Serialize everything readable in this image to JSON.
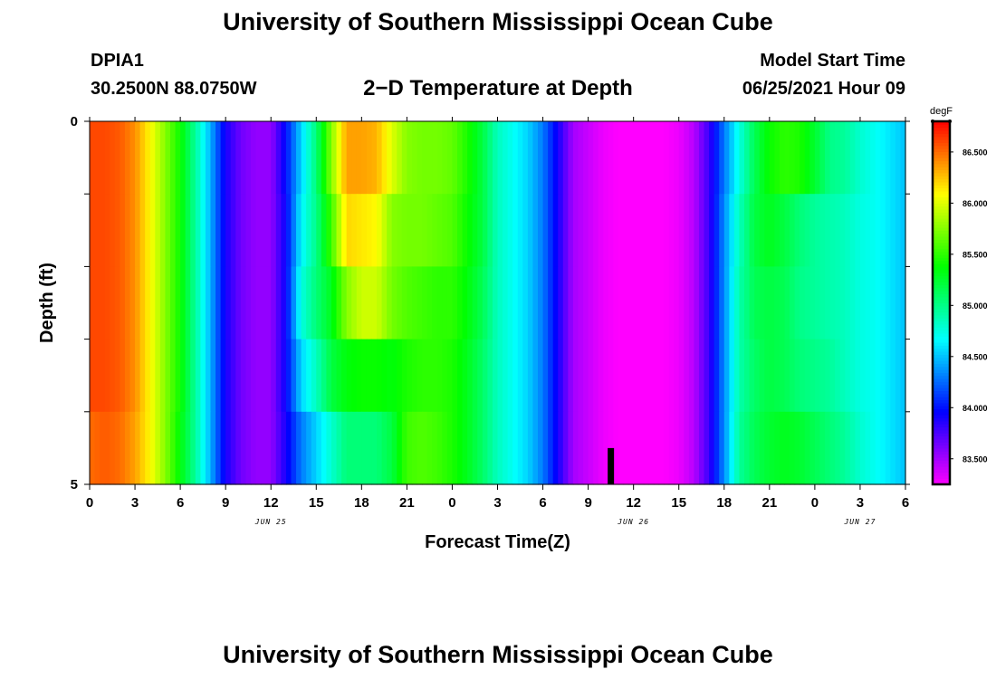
{
  "header": {
    "title": "University of Southern Mississippi Ocean Cube",
    "station": "DPIA1",
    "coords": "30.2500N  88.0750W",
    "subtitle": "2−D Temperature at Depth",
    "model_start_label": "Model Start Time",
    "model_start_value": "06/25/2021 Hour 09"
  },
  "footer": {
    "title": "University of Southern Mississippi Ocean Cube"
  },
  "chart_data": {
    "type": "heatmap",
    "title": "2-D Temperature at Depth",
    "xlabel": "Forecast Time(Z)",
    "ylabel": "Depth (ft)",
    "xlim": [
      0,
      54
    ],
    "ylim": [
      0,
      5
    ],
    "x_ticks": [
      {
        "at": 0,
        "label": "0"
      },
      {
        "at": 3,
        "label": "3"
      },
      {
        "at": 6,
        "label": "6"
      },
      {
        "at": 9,
        "label": "9"
      },
      {
        "at": 12,
        "label": "12"
      },
      {
        "at": 15,
        "label": "15"
      },
      {
        "at": 18,
        "label": "18"
      },
      {
        "at": 21,
        "label": "21"
      },
      {
        "at": 24,
        "label": "0"
      },
      {
        "at": 27,
        "label": "3"
      },
      {
        "at": 30,
        "label": "6"
      },
      {
        "at": 33,
        "label": "9"
      },
      {
        "at": 36,
        "label": "12"
      },
      {
        "at": 39,
        "label": "15"
      },
      {
        "at": 42,
        "label": "18"
      },
      {
        "at": 45,
        "label": "21"
      },
      {
        "at": 48,
        "label": "0"
      },
      {
        "at": 51,
        "label": "3"
      },
      {
        "at": 54,
        "label": "6"
      }
    ],
    "date_labels": [
      {
        "at": 12,
        "label": "JUN 25"
      },
      {
        "at": 36,
        "label": "JUN 26"
      },
      {
        "at": 51,
        "label": "JUN 27"
      }
    ],
    "y_ticks": [
      {
        "at": 0,
        "label": "0"
      },
      {
        "at": 1,
        "label": ""
      },
      {
        "at": 2,
        "label": ""
      },
      {
        "at": 3,
        "label": ""
      },
      {
        "at": 4,
        "label": ""
      },
      {
        "at": 5,
        "label": "5"
      }
    ],
    "depths": [
      0.5,
      1.5,
      2.5,
      3.5,
      4.5
    ],
    "time_nodes": [
      0,
      1,
      2,
      3,
      4,
      5,
      6,
      7,
      8,
      9,
      10,
      11,
      12,
      13,
      14,
      15,
      16,
      17,
      18,
      19,
      20,
      21,
      22,
      23,
      24,
      25,
      26,
      27,
      28,
      29,
      30,
      31,
      32,
      33,
      34,
      35,
      36,
      37,
      38,
      39,
      40,
      41,
      42,
      43,
      44,
      45,
      46,
      47,
      48,
      49,
      50,
      51,
      52,
      53,
      54
    ],
    "values": [
      [
        86.6,
        86.6,
        86.55,
        86.4,
        86.1,
        85.75,
        85.4,
        84.95,
        84.45,
        83.9,
        83.65,
        83.55,
        83.55,
        84.0,
        84.55,
        85.05,
        85.75,
        86.35,
        86.35,
        86.3,
        86.0,
        85.75,
        85.7,
        85.7,
        85.65,
        85.45,
        85.2,
        84.85,
        84.7,
        84.55,
        84.3,
        83.9,
        83.5,
        83.4,
        83.3,
        83.25,
        83.25,
        83.25,
        83.25,
        83.3,
        83.45,
        83.8,
        84.3,
        84.75,
        85.15,
        85.4,
        85.5,
        85.45,
        85.25,
        85.0,
        84.95,
        84.8,
        84.7,
        84.6,
        84.5
      ],
      [
        86.6,
        86.6,
        86.55,
        86.4,
        86.1,
        85.75,
        85.4,
        84.95,
        84.45,
        83.9,
        83.65,
        83.55,
        83.55,
        83.95,
        84.65,
        85.0,
        85.55,
        86.2,
        86.15,
        86.1,
        85.75,
        85.7,
        85.7,
        85.65,
        85.6,
        85.4,
        85.2,
        84.85,
        84.7,
        84.55,
        84.3,
        83.9,
        83.5,
        83.4,
        83.3,
        83.25,
        83.25,
        83.25,
        83.25,
        83.3,
        83.45,
        83.8,
        84.35,
        84.85,
        85.2,
        85.3,
        85.2,
        85.05,
        84.95,
        84.9,
        84.85,
        84.75,
        84.7,
        84.6,
        84.5
      ],
      [
        86.6,
        86.6,
        86.55,
        86.4,
        86.1,
        85.75,
        85.4,
        84.95,
        84.45,
        83.9,
        83.65,
        83.55,
        83.55,
        83.95,
        84.75,
        85.05,
        85.3,
        85.75,
        85.95,
        85.95,
        85.7,
        85.6,
        85.55,
        85.5,
        85.5,
        85.35,
        85.15,
        84.85,
        84.7,
        84.55,
        84.3,
        83.9,
        83.5,
        83.4,
        83.3,
        83.25,
        83.25,
        83.25,
        83.25,
        83.3,
        83.45,
        83.8,
        84.35,
        84.9,
        85.15,
        85.2,
        85.15,
        85.0,
        84.95,
        84.9,
        84.85,
        84.75,
        84.7,
        84.6,
        84.5
      ],
      [
        86.6,
        86.6,
        86.55,
        86.4,
        86.1,
        85.75,
        85.4,
        84.95,
        84.45,
        83.9,
        83.65,
        83.55,
        83.55,
        83.95,
        84.55,
        84.85,
        85.2,
        85.35,
        85.4,
        85.4,
        85.35,
        85.45,
        85.5,
        85.5,
        85.45,
        85.3,
        85.1,
        84.85,
        84.7,
        84.55,
        84.3,
        83.9,
        83.5,
        83.4,
        83.3,
        83.25,
        83.25,
        83.25,
        83.25,
        83.3,
        83.45,
        83.8,
        84.35,
        84.9,
        85.1,
        85.2,
        85.15,
        85.05,
        85.0,
        84.95,
        84.85,
        84.75,
        84.7,
        84.6,
        84.5
      ],
      [
        86.5,
        86.55,
        86.5,
        86.35,
        86.1,
        85.75,
        85.35,
        84.95,
        84.45,
        83.9,
        83.65,
        83.55,
        83.55,
        83.9,
        84.3,
        84.55,
        84.8,
        85.05,
        85.05,
        85.05,
        85.2,
        85.55,
        85.6,
        85.55,
        85.45,
        85.3,
        85.1,
        84.85,
        84.7,
        84.55,
        84.3,
        83.9,
        83.5,
        83.4,
        83.3,
        83.25,
        83.25,
        83.25,
        83.25,
        83.3,
        83.45,
        83.8,
        84.35,
        84.95,
        85.15,
        85.25,
        85.3,
        85.25,
        85.15,
        85.05,
        84.95,
        84.8,
        84.7,
        84.6,
        84.5
      ]
    ],
    "marker": {
      "at": 34.5,
      "depth_from": 4.5,
      "depth_to": 5
    },
    "colorbar": {
      "unit": "degF",
      "range": [
        83.25,
        86.8
      ],
      "ticks": [
        "83.500",
        "84.000",
        "84.500",
        "85.000",
        "85.500",
        "86.000",
        "86.500"
      ]
    }
  }
}
